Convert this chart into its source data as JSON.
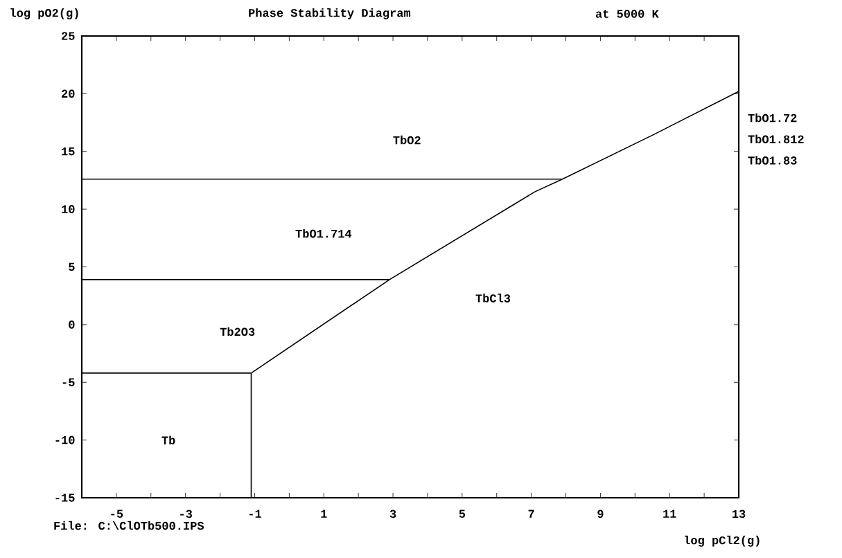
{
  "chart_data": {
    "type": "line",
    "title": "Phase Stability Diagram",
    "subtitle": "at  5000 K",
    "xlabel": "log pCl2(g)",
    "ylabel": "log pO2(g)",
    "xlim": [
      -6,
      13
    ],
    "ylim": [
      -15,
      25
    ],
    "xticks": [
      {
        "value": -5,
        "label": "-5"
      },
      {
        "value": -4,
        "label": null
      },
      {
        "value": -3,
        "label": "-3"
      },
      {
        "value": -2,
        "label": null
      },
      {
        "value": -1,
        "label": "-1"
      },
      {
        "value": 0,
        "label": null
      },
      {
        "value": 1,
        "label": "1"
      },
      {
        "value": 2,
        "label": null
      },
      {
        "value": 3,
        "label": "3"
      },
      {
        "value": 4,
        "label": null
      },
      {
        "value": 5,
        "label": "5"
      },
      {
        "value": 6,
        "label": null
      },
      {
        "value": 7,
        "label": "7"
      },
      {
        "value": 8,
        "label": null
      },
      {
        "value": 9,
        "label": "9"
      },
      {
        "value": 10,
        "label": null
      },
      {
        "value": 11,
        "label": "11"
      },
      {
        "value": 12,
        "label": null
      },
      {
        "value": 13,
        "label": "13"
      }
    ],
    "yticks": [
      -15,
      -10,
      -5,
      0,
      5,
      10,
      15,
      20,
      25
    ],
    "marker": "none",
    "line_style": "solid",
    "grid": false,
    "series": [
      {
        "color": "#000000",
        "x": [
          -6,
          7.9
        ],
        "values": [
          12.6,
          12.6
        ]
      },
      {
        "color": "#000000",
        "x": [
          -6,
          2.9
        ],
        "values": [
          3.9,
          3.9
        ]
      },
      {
        "color": "#000000",
        "x": [
          -6,
          -1.1
        ],
        "values": [
          -4.2,
          -4.2
        ]
      },
      {
        "color": "#000000",
        "x": [
          -1.1,
          -1.1
        ],
        "values": [
          -15,
          -4.2
        ]
      },
      {
        "color": "#000000",
        "x": [
          -1.1,
          2.9,
          7.1,
          7.9,
          10.5,
          13
        ],
        "values": [
          -4.2,
          3.9,
          11.5,
          12.6,
          16.4,
          20.2
        ]
      }
    ],
    "annotations": [
      "TbO2",
      "TbO1.714",
      "Tb2O3",
      "TbCl3",
      "Tb",
      "TbO1.72",
      "TbO1.812",
      "TbO1.83",
      "File: C:\\ClOTb500.IPS"
    ]
  }
}
